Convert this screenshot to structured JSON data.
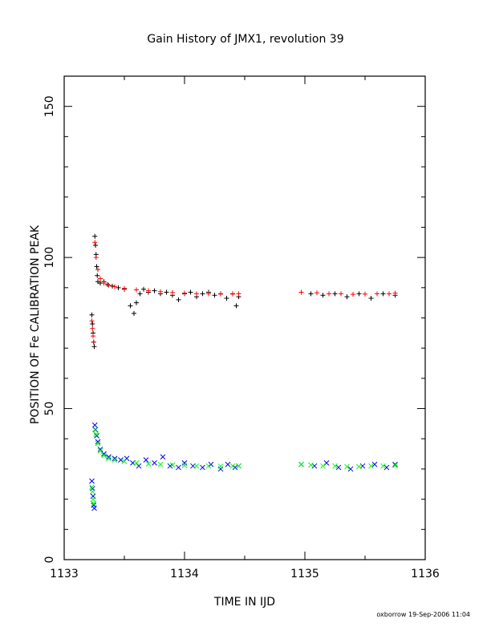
{
  "chart_data": {
    "type": "scatter",
    "title": "Gain History of JMX1, revolution 39",
    "xlabel": "TIME IN IJD",
    "ylabel": "POSITION OF Fe CALIBRATION PEAK",
    "xlim": [
      1133,
      1136
    ],
    "ylim": [
      0,
      160
    ],
    "xticks": [
      "1133",
      "1134",
      "1135",
      "1136"
    ],
    "yticks": [
      "0",
      "50",
      "100",
      "150"
    ],
    "grid": false,
    "legend": "none",
    "footer": "oxborrow 19-Sep-2006 11:04",
    "series": [
      {
        "color": "#000000",
        "marker": "plus",
        "points": [
          [
            1133.23,
            81
          ],
          [
            1133.235,
            78
          ],
          [
            1133.24,
            75
          ],
          [
            1133.245,
            72
          ],
          [
            1133.25,
            70.5
          ],
          [
            1133.255,
            107
          ],
          [
            1133.26,
            104
          ],
          [
            1133.265,
            101
          ],
          [
            1133.27,
            97
          ],
          [
            1133.275,
            94
          ],
          [
            1133.28,
            92
          ],
          [
            1133.3,
            91.5
          ],
          [
            1133.33,
            92
          ],
          [
            1133.36,
            91
          ],
          [
            1133.4,
            90.5
          ],
          [
            1133.45,
            90
          ],
          [
            1133.5,
            89.5
          ],
          [
            1133.55,
            84
          ],
          [
            1133.58,
            81.5
          ],
          [
            1133.6,
            85
          ],
          [
            1133.63,
            88
          ],
          [
            1133.66,
            89.5
          ],
          [
            1133.7,
            88.5
          ],
          [
            1133.75,
            89
          ],
          [
            1133.8,
            88
          ],
          [
            1133.85,
            88.5
          ],
          [
            1133.9,
            87.5
          ],
          [
            1133.95,
            86
          ],
          [
            1134.0,
            88
          ],
          [
            1134.05,
            88.5
          ],
          [
            1134.1,
            87
          ],
          [
            1134.15,
            88
          ],
          [
            1134.2,
            88.5
          ],
          [
            1134.25,
            87.5
          ],
          [
            1134.3,
            88
          ],
          [
            1134.35,
            86.5
          ],
          [
            1134.4,
            88
          ],
          [
            1134.43,
            84
          ],
          [
            1134.45,
            87
          ],
          [
            1134.97,
            88.5
          ],
          [
            1135.05,
            88
          ],
          [
            1135.15,
            87.5
          ],
          [
            1135.25,
            88
          ],
          [
            1135.35,
            87
          ],
          [
            1135.45,
            88
          ],
          [
            1135.55,
            86.5
          ],
          [
            1135.65,
            88
          ],
          [
            1135.75,
            87.5
          ]
        ]
      },
      {
        "color": "#ff0000",
        "marker": "plus",
        "points": [
          [
            1133.23,
            79
          ],
          [
            1133.235,
            76.5
          ],
          [
            1133.24,
            74
          ],
          [
            1133.245,
            72
          ],
          [
            1133.255,
            105
          ],
          [
            1133.265,
            100
          ],
          [
            1133.28,
            96
          ],
          [
            1133.3,
            93
          ],
          [
            1133.33,
            91.5
          ],
          [
            1133.37,
            90.8
          ],
          [
            1133.42,
            90.3
          ],
          [
            1133.5,
            89.8
          ],
          [
            1133.6,
            89.3
          ],
          [
            1133.7,
            89
          ],
          [
            1133.8,
            88.7
          ],
          [
            1133.9,
            88.4
          ],
          [
            1134.0,
            88.2
          ],
          [
            1134.1,
            88
          ],
          [
            1134.2,
            88
          ],
          [
            1134.3,
            87.9
          ],
          [
            1134.4,
            87.9
          ],
          [
            1134.45,
            88
          ],
          [
            1134.97,
            88.5
          ],
          [
            1135.1,
            88.3
          ],
          [
            1135.2,
            88
          ],
          [
            1135.3,
            88
          ],
          [
            1135.4,
            87.8
          ],
          [
            1135.5,
            87.9
          ],
          [
            1135.6,
            88
          ],
          [
            1135.7,
            88
          ],
          [
            1135.75,
            88.2
          ]
        ]
      },
      {
        "color": "#0000ff",
        "marker": "cross",
        "points": [
          [
            1133.23,
            26
          ],
          [
            1133.235,
            23.5
          ],
          [
            1133.24,
            21
          ],
          [
            1133.245,
            18
          ],
          [
            1133.25,
            17
          ],
          [
            1133.255,
            44.5
          ],
          [
            1133.26,
            43
          ],
          [
            1133.27,
            41
          ],
          [
            1133.28,
            39
          ],
          [
            1133.3,
            36.5
          ],
          [
            1133.33,
            35
          ],
          [
            1133.37,
            34
          ],
          [
            1133.42,
            33.5
          ],
          [
            1133.47,
            33
          ],
          [
            1133.52,
            33.5
          ],
          [
            1133.57,
            32
          ],
          [
            1133.62,
            31
          ],
          [
            1133.68,
            33
          ],
          [
            1133.75,
            32
          ],
          [
            1133.82,
            34
          ],
          [
            1133.88,
            31
          ],
          [
            1133.95,
            30.5
          ],
          [
            1134.0,
            32
          ],
          [
            1134.07,
            31
          ],
          [
            1134.15,
            30.5
          ],
          [
            1134.22,
            31.5
          ],
          [
            1134.3,
            30
          ],
          [
            1134.36,
            31.5
          ],
          [
            1134.42,
            30.5
          ],
          [
            1134.45,
            31
          ],
          [
            1134.97,
            31.5
          ],
          [
            1135.08,
            31
          ],
          [
            1135.18,
            32
          ],
          [
            1135.28,
            30.5
          ],
          [
            1135.38,
            30
          ],
          [
            1135.48,
            31
          ],
          [
            1135.58,
            31.5
          ],
          [
            1135.68,
            30.5
          ],
          [
            1135.75,
            31.5
          ]
        ]
      },
      {
        "color": "#00ff00",
        "marker": "cross",
        "points": [
          [
            1133.23,
            24
          ],
          [
            1133.235,
            22.5
          ],
          [
            1133.24,
            20
          ],
          [
            1133.245,
            18.5
          ],
          [
            1133.255,
            43
          ],
          [
            1133.265,
            41.5
          ],
          [
            1133.28,
            38.5
          ],
          [
            1133.3,
            36
          ],
          [
            1133.33,
            34.5
          ],
          [
            1133.37,
            33.5
          ],
          [
            1133.42,
            33
          ],
          [
            1133.5,
            32.5
          ],
          [
            1133.6,
            32
          ],
          [
            1133.7,
            31.7
          ],
          [
            1133.8,
            31.5
          ],
          [
            1133.9,
            31.3
          ],
          [
            1134.0,
            31.2
          ],
          [
            1134.1,
            31
          ],
          [
            1134.2,
            31
          ],
          [
            1134.3,
            30.9
          ],
          [
            1134.4,
            31
          ],
          [
            1134.45,
            31
          ],
          [
            1134.97,
            31.5
          ],
          [
            1135.05,
            31.3
          ],
          [
            1135.15,
            31
          ],
          [
            1135.25,
            31
          ],
          [
            1135.35,
            30.8
          ],
          [
            1135.45,
            30.8
          ],
          [
            1135.55,
            31
          ],
          [
            1135.65,
            31
          ],
          [
            1135.75,
            31.2
          ]
        ]
      }
    ]
  }
}
